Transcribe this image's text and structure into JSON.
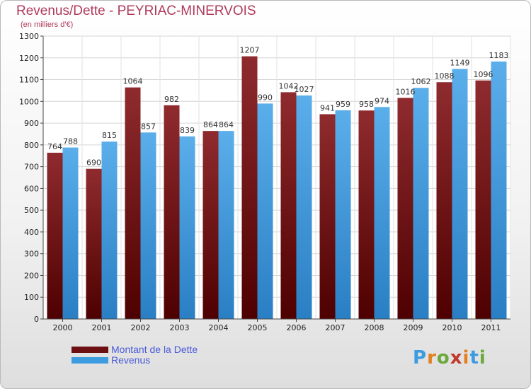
{
  "header": {
    "title": "Revenus/Dette - PEYRIAC-MINERVOIS",
    "subtitle": "(en milliers d'€)"
  },
  "legend": {
    "items": [
      {
        "label": "Montant de la Dette",
        "color": "#6b0f12"
      },
      {
        "label": "Revenus",
        "color": "#3d9be0"
      }
    ]
  },
  "logo": {
    "text": "Proxiti"
  },
  "chart_data": {
    "type": "bar",
    "title": "Revenus/Dette - PEYRIAC-MINERVOIS",
    "subtitle": "(en milliers d'€)",
    "categories": [
      "2000",
      "2001",
      "2002",
      "2003",
      "2004",
      "2005",
      "2006",
      "2007",
      "2008",
      "2009",
      "2010",
      "2011"
    ],
    "series": [
      {
        "name": "Montant de la Dette",
        "color": "#6b0f12",
        "values": [
          764,
          690,
          1064,
          982,
          864,
          1207,
          1042,
          941,
          958,
          1016,
          1088,
          1096
        ]
      },
      {
        "name": "Revenus",
        "color": "#3d9be0",
        "values": [
          788,
          815,
          857,
          839,
          864,
          990,
          1027,
          959,
          974,
          1062,
          1149,
          1183
        ]
      }
    ],
    "ylim": [
      0,
      1300
    ],
    "yticks": [
      0,
      100,
      200,
      300,
      400,
      500,
      600,
      700,
      800,
      900,
      1000,
      1100,
      1200,
      1300
    ],
    "grid": true,
    "legend_position": "bottom-left"
  }
}
